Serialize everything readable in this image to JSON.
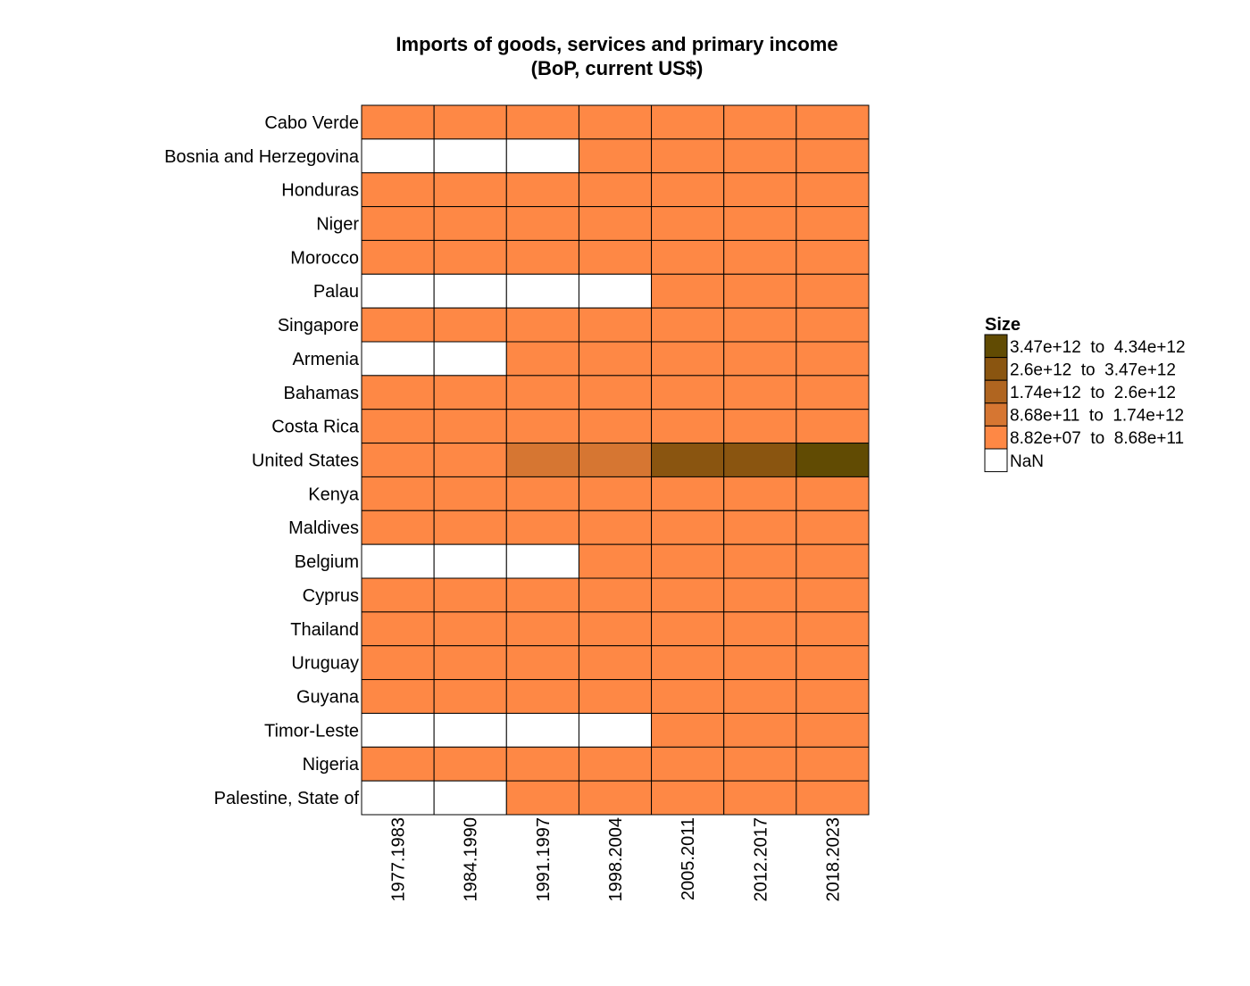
{
  "chart_data": {
    "type": "heatmap",
    "title_lines": [
      "Imports of goods, services and primary income",
      "(BoP, current US$)"
    ],
    "x_categories": [
      "1977.1983",
      "1984.1990",
      "1991.1997",
      "1998.2004",
      "2005.2011",
      "2012.2017",
      "2018.2023"
    ],
    "y_categories": [
      "Cabo Verde",
      "Bosnia and Herzegovina",
      "Honduras",
      "Niger",
      "Morocco",
      "Palau",
      "Singapore",
      "Armenia",
      "Bahamas",
      "Costa Rica",
      "United States",
      "Kenya",
      "Maldives",
      "Belgium",
      "Cyprus",
      "Thailand",
      "Uruguay",
      "Guyana",
      "Timor-Leste",
      "Nigeria",
      "Palestine, State of"
    ],
    "cell_bins": [
      [
        0,
        0,
        0,
        0,
        0,
        0,
        0
      ],
      [
        -1,
        -1,
        -1,
        0,
        0,
        0,
        0
      ],
      [
        0,
        0,
        0,
        0,
        0,
        0,
        0
      ],
      [
        0,
        0,
        0,
        0,
        0,
        0,
        0
      ],
      [
        0,
        0,
        0,
        0,
        0,
        0,
        0
      ],
      [
        -1,
        -1,
        -1,
        -1,
        0,
        0,
        0
      ],
      [
        0,
        0,
        0,
        0,
        0,
        0,
        0
      ],
      [
        -1,
        -1,
        0,
        0,
        0,
        0,
        0
      ],
      [
        0,
        0,
        0,
        0,
        0,
        0,
        0
      ],
      [
        0,
        0,
        0,
        0,
        0,
        0,
        0
      ],
      [
        0,
        0,
        1,
        1,
        3,
        3,
        4
      ],
      [
        0,
        0,
        0,
        0,
        0,
        0,
        0
      ],
      [
        0,
        0,
        0,
        0,
        0,
        0,
        0
      ],
      [
        -1,
        -1,
        -1,
        0,
        0,
        0,
        0
      ],
      [
        0,
        0,
        0,
        0,
        0,
        0,
        0
      ],
      [
        0,
        0,
        0,
        0,
        0,
        0,
        0
      ],
      [
        0,
        0,
        0,
        0,
        0,
        0,
        0
      ],
      [
        0,
        0,
        0,
        0,
        0,
        0,
        0
      ],
      [
        -1,
        -1,
        -1,
        -1,
        0,
        0,
        0
      ],
      [
        0,
        0,
        0,
        0,
        0,
        0,
        0
      ],
      [
        -1,
        -1,
        0,
        0,
        0,
        0,
        0
      ]
    ],
    "legend": {
      "title": "Size",
      "placement": "right",
      "bins": [
        {
          "from": "3.47e+12",
          "sep": "to",
          "to": "4.34e+12",
          "color": "#614b03"
        },
        {
          "from": "2.6e+12",
          "sep": "to",
          "to": "3.47e+12",
          "color": "#8a5510"
        },
        {
          "from": "1.74e+12",
          "sep": "to",
          "to": "2.6e+12",
          "color": "#b06520"
        },
        {
          "from": "8.68e+11",
          "sep": "to",
          "to": "1.74e+12",
          "color": "#d67632"
        },
        {
          "from": "8.82e+07",
          "sep": "to",
          "to": "8.68e+11",
          "color": "#fe8845"
        }
      ],
      "nan_label": "NaN",
      "nan_color": "#ffffff"
    }
  }
}
